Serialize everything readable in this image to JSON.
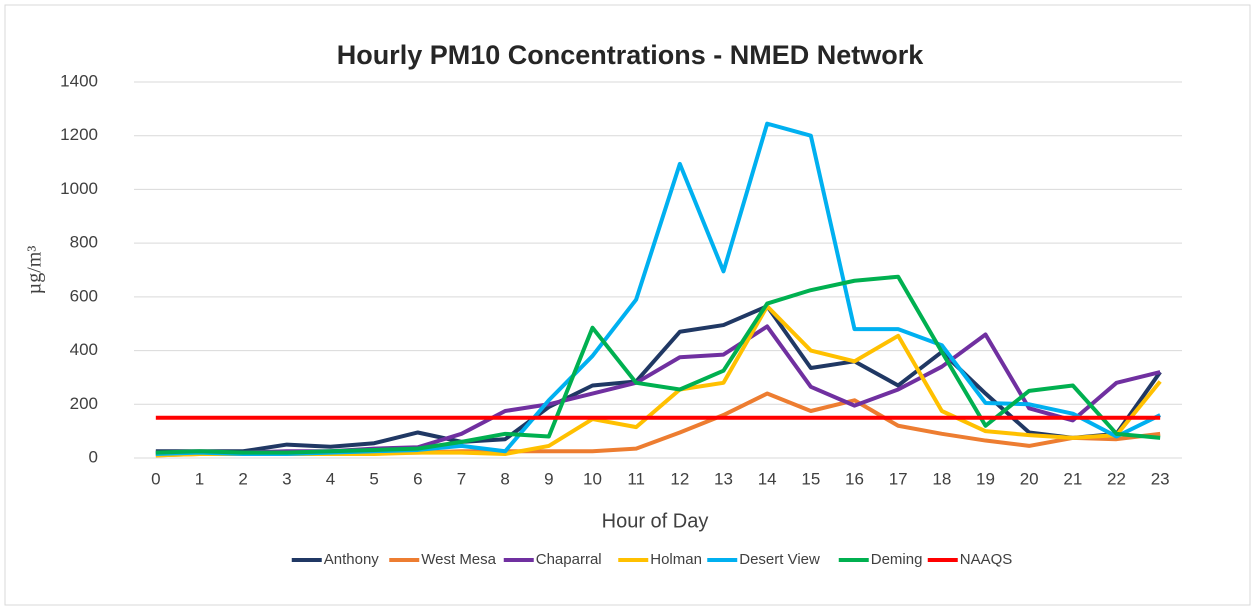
{
  "chart_data": {
    "type": "line",
    "title": "Hourly PM10 Concentrations - NMED Network",
    "x_label": "Hour of Day",
    "y_label": "µg/m³",
    "categories": [
      "0",
      "1",
      "2",
      "3",
      "4",
      "5",
      "6",
      "7",
      "8",
      "9",
      "10",
      "11",
      "12",
      "13",
      "14",
      "15",
      "16",
      "17",
      "18",
      "19",
      "20",
      "21",
      "22",
      "23"
    ],
    "ylim": [
      0,
      1400
    ],
    "yticks": [
      0,
      200,
      400,
      600,
      800,
      1000,
      1200,
      1400
    ],
    "grid": true,
    "legend": "bottom",
    "series": [
      {
        "name": "Anthony",
        "color": "#203864",
        "values": [
          25,
          25,
          25,
          50,
          42,
          55,
          95,
          60,
          70,
          190,
          270,
          285,
          470,
          495,
          565,
          335,
          360,
          270,
          395,
          240,
          95,
          75,
          90,
          320
        ]
      },
      {
        "name": "West Mesa",
        "color": "#ed7d31",
        "values": [
          10,
          15,
          15,
          15,
          15,
          20,
          20,
          25,
          25,
          25,
          25,
          35,
          95,
          160,
          240,
          175,
          215,
          120,
          90,
          65,
          45,
          75,
          70,
          90
        ]
      },
      {
        "name": "Chaparral",
        "color": "#7030a0",
        "values": [
          20,
          20,
          20,
          25,
          25,
          35,
          40,
          90,
          175,
          200,
          240,
          280,
          375,
          385,
          490,
          265,
          195,
          255,
          340,
          460,
          185,
          140,
          280,
          320
        ]
      },
      {
        "name": "Holman",
        "color": "#ffc000",
        "values": [
          10,
          15,
          15,
          15,
          15,
          15,
          20,
          20,
          15,
          45,
          145,
          115,
          255,
          280,
          565,
          400,
          360,
          455,
          175,
          100,
          85,
          75,
          85,
          285
        ]
      },
      {
        "name": "Desert View",
        "color": "#00b0f0",
        "values": [
          15,
          20,
          15,
          15,
          20,
          25,
          30,
          45,
          25,
          215,
          380,
          590,
          1095,
          695,
          1245,
          1200,
          480,
          480,
          420,
          205,
          200,
          165,
          80,
          160
        ]
      },
      {
        "name": "Deming",
        "color": "#00b050",
        "values": [
          20,
          25,
          20,
          20,
          25,
          30,
          35,
          60,
          90,
          80,
          485,
          280,
          255,
          325,
          575,
          625,
          660,
          675,
          395,
          120,
          250,
          270,
          90,
          75
        ]
      },
      {
        "name": "NAAQS",
        "color": "#ff0000",
        "values": [
          150,
          150,
          150,
          150,
          150,
          150,
          150,
          150,
          150,
          150,
          150,
          150,
          150,
          150,
          150,
          150,
          150,
          150,
          150,
          150,
          150,
          150,
          150,
          150
        ]
      }
    ]
  }
}
